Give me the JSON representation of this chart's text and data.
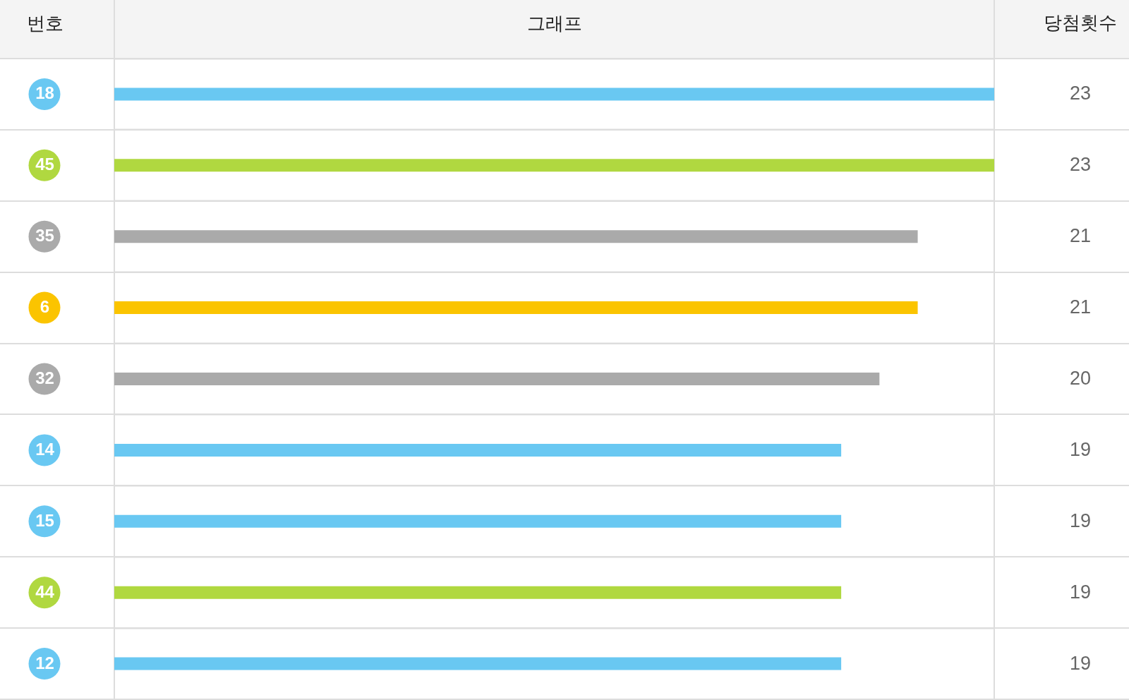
{
  "chart_data": {
    "type": "bar",
    "orientation": "horizontal",
    "ylabel": "번호",
    "xlabel": "그래프",
    "annotations": [
      "당첨횟수"
    ],
    "categories": [
      "18",
      "45",
      "35",
      "6",
      "32",
      "14",
      "15",
      "44",
      "12"
    ],
    "values": [
      23,
      23,
      21,
      21,
      20,
      19,
      19,
      19,
      19
    ],
    "colors": [
      "#69c8f2",
      "#b0d840",
      "#aaaaaa",
      "#fbc400",
      "#aaaaaa",
      "#69c8f2",
      "#69c8f2",
      "#b0d840",
      "#69c8f2"
    ],
    "xlim": [
      0,
      23
    ],
    "data_labels": true,
    "grid": "y",
    "tick_labels": "y"
  }
}
